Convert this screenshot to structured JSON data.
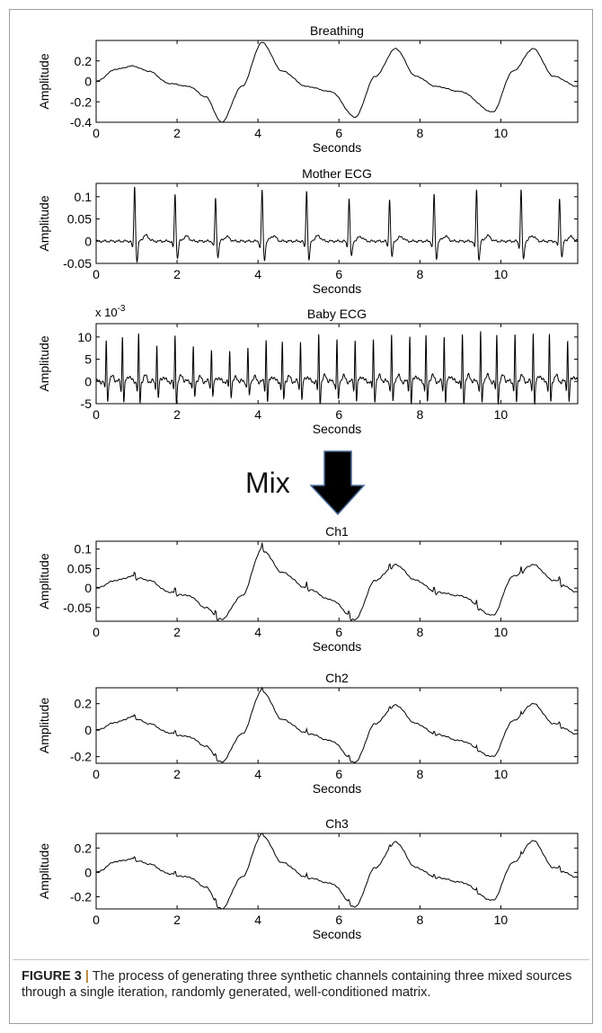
{
  "figure": {
    "caption_label": "FIGURE 3",
    "caption_separator": "|",
    "caption_text": "The process of generating three synthetic channels containing three mixed sources through a single iteration, randomly generated, well-conditioned matrix.",
    "mix_label": "Mix",
    "colors": {
      "line": "#000000",
      "arrow_fill": "#000000",
      "arrow_stroke": "#4a6b9a",
      "frame": "#9aa0a6",
      "caption_accent": "#b7832f"
    }
  },
  "chart_data": [
    {
      "type": "line",
      "title": "Breathing",
      "xlabel": "Seconds",
      "ylabel": "Amplitude",
      "xlim": [
        0,
        11.9
      ],
      "ylim": [
        -0.4,
        0.4
      ],
      "xticks": [
        "0",
        "2",
        "4",
        "6",
        "8",
        "10"
      ],
      "yticks": [
        "0.2",
        "0",
        "-0.2",
        "-0.4"
      ],
      "ytick_values": [
        0.2,
        0,
        -0.2,
        -0.4
      ],
      "grid": false,
      "x": [
        0,
        0.5,
        0.9,
        1.3,
        1.8,
        2.3,
        2.7,
        3.1,
        3.6,
        4.1,
        4.6,
        5.2,
        5.8,
        6.4,
        6.9,
        7.4,
        7.9,
        8.4,
        9.0,
        9.8,
        10.3,
        10.8,
        11.3,
        11.9
      ],
      "y": [
        0.0,
        0.12,
        0.15,
        0.1,
        -0.02,
        -0.05,
        -0.15,
        -0.4,
        -0.05,
        0.38,
        0.1,
        -0.05,
        -0.1,
        -0.35,
        0.05,
        0.32,
        0.05,
        -0.05,
        -0.1,
        -0.3,
        0.1,
        0.32,
        0.05,
        -0.05
      ]
    },
    {
      "type": "line",
      "title": "Mother ECG",
      "xlabel": "Seconds",
      "ylabel": "Amplitude",
      "xlim": [
        0,
        11.9
      ],
      "ylim": [
        -0.05,
        0.13
      ],
      "xticks": [
        "0",
        "2",
        "4",
        "6",
        "8",
        "10"
      ],
      "yticks": [
        "0.1",
        "0.05",
        "0",
        "-0.05"
      ],
      "ytick_values": [
        0.1,
        0.05,
        0,
        -0.05
      ],
      "grid": false,
      "beat_times": [
        0.95,
        1.95,
        2.95,
        4.1,
        5.2,
        6.25,
        7.25,
        8.35,
        9.4,
        10.5,
        11.45
      ],
      "beat_peaks": [
        0.13,
        0.11,
        0.1,
        0.12,
        0.12,
        0.1,
        0.1,
        0.11,
        0.12,
        0.12,
        0.1
      ]
    },
    {
      "type": "line",
      "title": "Baby ECG",
      "xlabel": "Seconds",
      "ylabel": "Amplitude",
      "yscale_label": "x 10",
      "yscale_exponent": "-3",
      "xlim": [
        0,
        11.9
      ],
      "ylim": [
        -5,
        13
      ],
      "xticks": [
        "0",
        "2",
        "4",
        "6",
        "8",
        "10"
      ],
      "yticks": [
        "10",
        "5",
        "0",
        "-5"
      ],
      "ytick_values": [
        10,
        5,
        0,
        -5
      ],
      "grid": false,
      "beat_times": [
        0.25,
        0.65,
        1.05,
        1.5,
        1.95,
        2.4,
        2.85,
        3.3,
        3.75,
        4.2,
        4.6,
        5.05,
        5.5,
        5.95,
        6.4,
        6.85,
        7.3,
        7.75,
        8.15,
        8.6,
        9.05,
        9.5,
        9.9,
        10.35,
        10.8,
        11.2,
        11.65
      ],
      "beat_peaks": [
        10,
        11,
        11,
        9,
        11,
        8,
        8,
        7,
        8,
        10,
        9,
        10,
        11,
        10,
        10,
        10,
        11,
        11,
        11,
        11,
        11,
        12,
        11,
        11,
        12,
        11,
        10
      ]
    },
    {
      "type": "line",
      "title": "Ch1",
      "xlabel": "Seconds",
      "ylabel": "Amplitude",
      "xlim": [
        0,
        11.9
      ],
      "ylim": [
        -0.085,
        0.12
      ],
      "xticks": [
        "0",
        "2",
        "4",
        "6",
        "8",
        "10"
      ],
      "yticks": [
        "0.1",
        "0.05",
        "0",
        "-0.05"
      ],
      "ytick_values": [
        0.1,
        0.05,
        0,
        -0.05
      ],
      "grid": false,
      "x": [
        0,
        0.5,
        0.9,
        1.3,
        1.8,
        2.3,
        2.7,
        3.1,
        3.6,
        4.1,
        4.6,
        5.2,
        5.8,
        6.4,
        6.9,
        7.4,
        7.9,
        8.4,
        9.0,
        9.8,
        10.3,
        10.8,
        11.3,
        11.9
      ],
      "y": [
        0.0,
        0.02,
        0.03,
        0.02,
        -0.01,
        -0.02,
        -0.05,
        -0.08,
        -0.02,
        0.1,
        0.04,
        0.0,
        -0.03,
        -0.08,
        0.02,
        0.06,
        0.02,
        -0.01,
        -0.02,
        -0.07,
        0.03,
        0.06,
        0.02,
        -0.01
      ]
    },
    {
      "type": "line",
      "title": "Ch2",
      "xlabel": "Seconds",
      "ylabel": "Amplitude",
      "xlim": [
        0,
        11.9
      ],
      "ylim": [
        -0.25,
        0.32
      ],
      "xticks": [
        "0",
        "2",
        "4",
        "6",
        "8",
        "10"
      ],
      "yticks": [
        "0.2",
        "0",
        "-0.2"
      ],
      "ytick_values": [
        0.2,
        0,
        -0.2
      ],
      "grid": false,
      "x": [
        0,
        0.5,
        0.9,
        1.3,
        1.8,
        2.3,
        2.7,
        3.1,
        3.6,
        4.1,
        4.6,
        5.2,
        5.8,
        6.4,
        6.9,
        7.4,
        7.9,
        8.4,
        9.0,
        9.8,
        10.3,
        10.8,
        11.3,
        11.9
      ],
      "y": [
        0.0,
        0.06,
        0.1,
        0.05,
        -0.02,
        -0.05,
        -0.12,
        -0.24,
        -0.03,
        0.3,
        0.08,
        -0.02,
        -0.08,
        -0.24,
        0.05,
        0.19,
        0.05,
        -0.03,
        -0.08,
        -0.2,
        0.07,
        0.2,
        0.05,
        -0.03
      ]
    },
    {
      "type": "line",
      "title": "Ch3",
      "xlabel": "Seconds",
      "ylabel": "Amplitude",
      "xlim": [
        0,
        11.9
      ],
      "ylim": [
        -0.3,
        0.32
      ],
      "xticks": [
        "0",
        "2",
        "4",
        "6",
        "8",
        "10"
      ],
      "yticks": [
        "0.2",
        "0",
        "-0.2"
      ],
      "ytick_values": [
        0.2,
        0,
        -0.2
      ],
      "grid": false,
      "x": [
        0,
        0.5,
        0.9,
        1.3,
        1.8,
        2.3,
        2.7,
        3.1,
        3.6,
        4.1,
        4.6,
        5.2,
        5.8,
        6.4,
        6.9,
        7.4,
        7.9,
        8.4,
        9.0,
        9.8,
        10.3,
        10.8,
        11.3,
        11.9
      ],
      "y": [
        0.0,
        0.09,
        0.11,
        0.07,
        -0.01,
        -0.04,
        -0.12,
        -0.3,
        -0.04,
        0.31,
        0.08,
        -0.04,
        -0.09,
        -0.28,
        0.04,
        0.25,
        0.04,
        -0.04,
        -0.08,
        -0.23,
        0.08,
        0.26,
        0.04,
        -0.04
      ]
    }
  ]
}
